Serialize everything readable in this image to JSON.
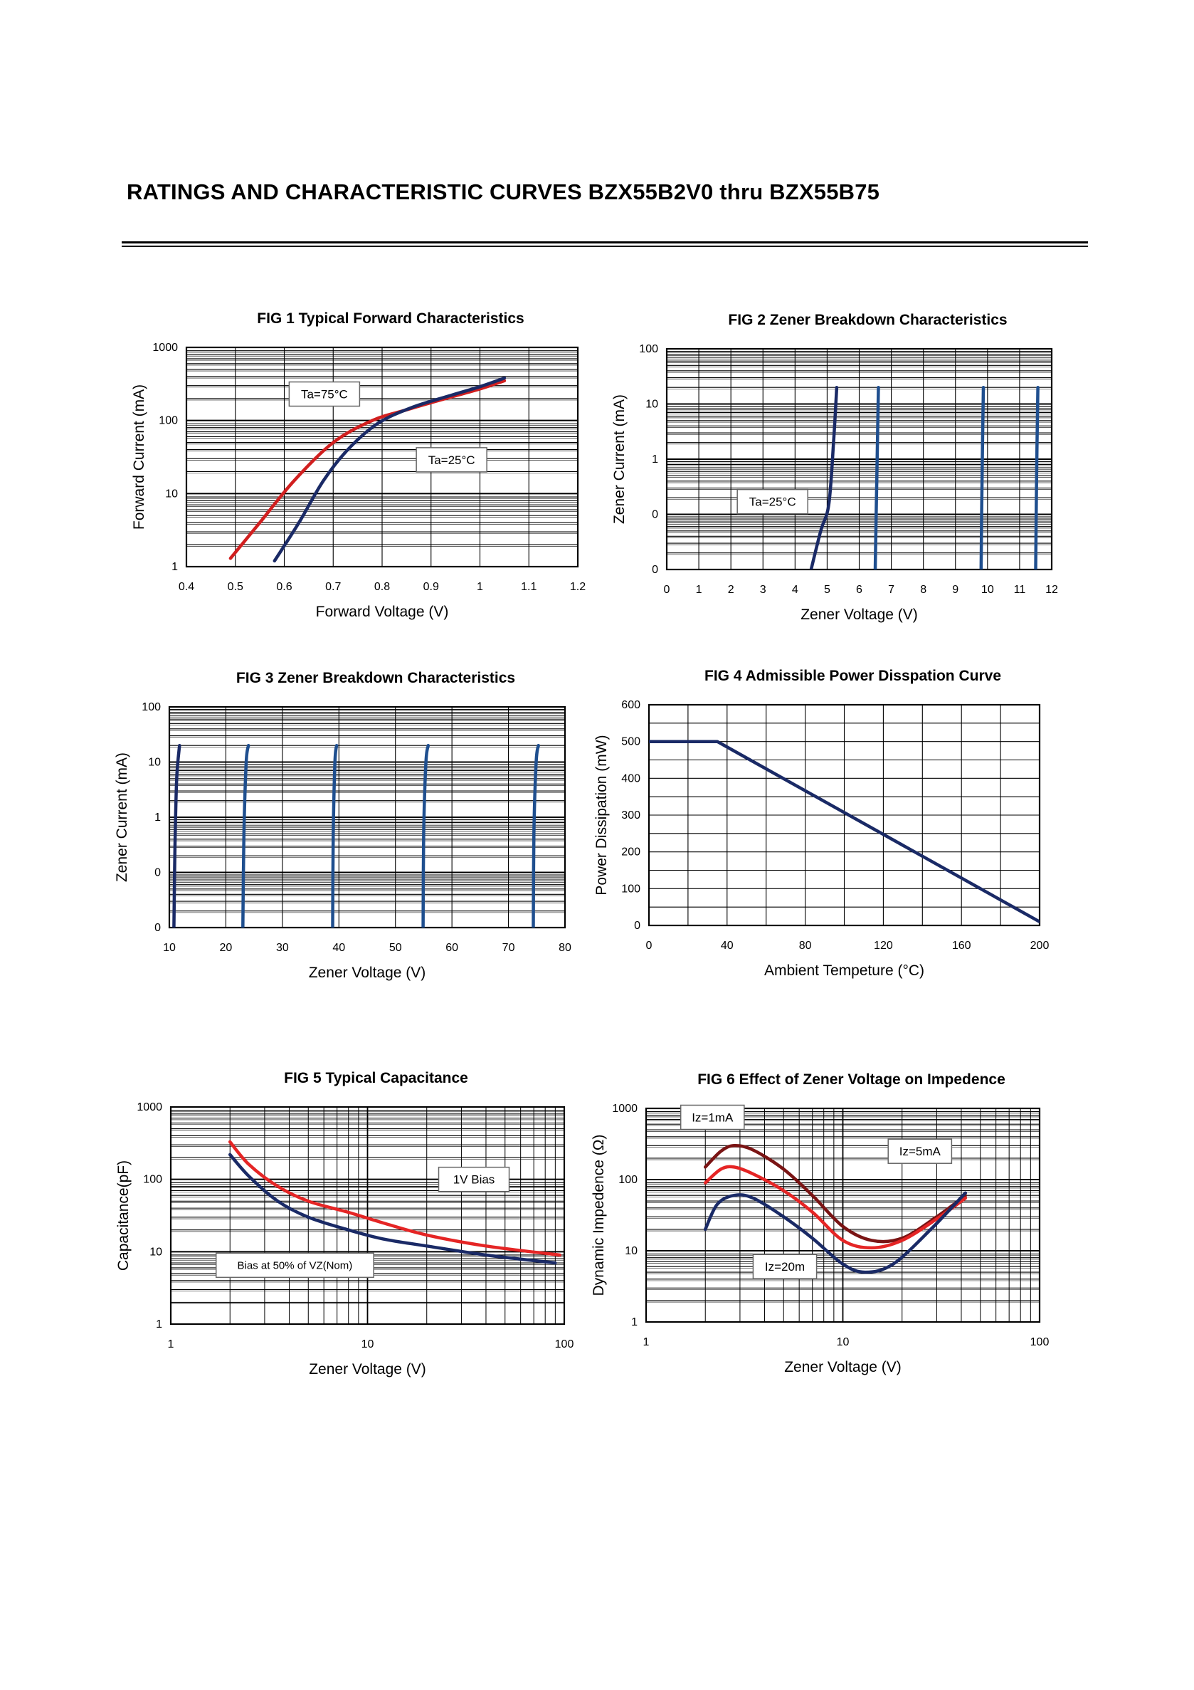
{
  "page": {
    "title": "RATINGS AND CHARACTERISTIC CURVES  BZX55B2V0 thru BZX55B75"
  },
  "colors": {
    "red": "#d11f1f",
    "navy": "#1a2a66",
    "blue": "#1f4f8f",
    "darkred": "#7a1414"
  },
  "chart_data": [
    {
      "id": "fig1",
      "type": "line",
      "title": "FIG 1 Typical Forward Characteristics",
      "xlabel": "Forward Voltage (V)",
      "ylabel": "Forward Current (mA)",
      "xlim": [
        0.4,
        1.2
      ],
      "ylim": [
        1,
        1000
      ],
      "yscale": "log",
      "grid": true,
      "xticks": [
        0.4,
        0.5,
        0.6,
        0.7,
        0.8,
        0.9,
        1,
        1.1,
        1.2
      ],
      "xtick_labels": [
        "0.4",
        "0.5",
        "0.6",
        "0.7",
        "0.8",
        "0.9",
        "1",
        "1.1",
        "1.2"
      ],
      "yticks": [
        1,
        10,
        100,
        1000
      ],
      "ytick_labels": [
        "1",
        "10",
        "100",
        "1000"
      ],
      "series": [
        {
          "name": "Ta=75°C",
          "color": "#d11f1f",
          "points": [
            [
              0.49,
              1.3
            ],
            [
              0.55,
              4
            ],
            [
              0.62,
              15
            ],
            [
              0.7,
              50
            ],
            [
              0.78,
              100
            ],
            [
              0.85,
              140
            ],
            [
              0.93,
              200
            ],
            [
              1.0,
              270
            ],
            [
              1.05,
              350
            ]
          ]
        },
        {
          "name": "Ta=25°C",
          "color": "#1a2a66",
          "points": [
            [
              0.58,
              1.2
            ],
            [
              0.63,
              4
            ],
            [
              0.68,
              15
            ],
            [
              0.73,
              40
            ],
            [
              0.79,
              90
            ],
            [
              0.86,
              150
            ],
            [
              0.94,
              220
            ],
            [
              1.0,
              290
            ],
            [
              1.05,
              380
            ]
          ]
        }
      ],
      "annotations": [
        {
          "text": "Ta=75°C",
          "x": 0.61,
          "y": 230
        },
        {
          "text": "Ta=25°C",
          "x": 0.87,
          "y": 29
        }
      ]
    },
    {
      "id": "fig2",
      "type": "line",
      "title": "FIG 2 Zener Breakdown Characteristics",
      "xlabel": "Zener Voltage (V)",
      "ylabel": "Zener Current (mA)",
      "xlim": [
        0,
        12
      ],
      "ylim": [
        0.01,
        100
      ],
      "yscale": "log",
      "grid": true,
      "xticks": [
        0,
        1,
        2,
        3,
        4,
        5,
        6,
        7,
        8,
        9,
        10,
        11,
        12
      ],
      "xtick_labels": [
        "0",
        "1",
        "2",
        "3",
        "4",
        "5",
        "6",
        "7",
        "8",
        "9",
        "10",
        "11",
        "12"
      ],
      "yticks": [
        0.01,
        0.1,
        1,
        10,
        100
      ],
      "ytick_labels": [
        "0",
        "0",
        "1",
        "10",
        "100"
      ],
      "series": [
        {
          "color": "#1a2a66",
          "points": [
            [
              4.5,
              0.01
            ],
            [
              4.8,
              0.05
            ],
            [
              5.05,
              0.15
            ],
            [
              5.2,
              2
            ],
            [
              5.3,
              20
            ]
          ]
        },
        {
          "color": "#1f4f8f",
          "points": [
            [
              6.5,
              0.01
            ],
            [
              6.55,
              0.5
            ],
            [
              6.6,
              20
            ]
          ]
        },
        {
          "color": "#1f4f8f",
          "points": [
            [
              9.8,
              0.01
            ],
            [
              9.83,
              0.5
            ],
            [
              9.87,
              20
            ]
          ]
        },
        {
          "color": "#1f4f8f",
          "points": [
            [
              11.5,
              0.01
            ],
            [
              11.53,
              0.5
            ],
            [
              11.57,
              20
            ]
          ]
        }
      ],
      "annotations": [
        {
          "text": "Ta=25°C",
          "x": 2.2,
          "y": 0.17
        }
      ]
    },
    {
      "id": "fig3",
      "type": "line",
      "title": "FIG 3 Zener Breakdown Characteristics",
      "xlabel": "Zener Voltage (V)",
      "ylabel": "Zener Current (mA)",
      "xlim": [
        10,
        80
      ],
      "ylim": [
        0.01,
        100
      ],
      "yscale": "log",
      "grid": true,
      "xticks": [
        10,
        20,
        30,
        40,
        50,
        60,
        70,
        80
      ],
      "xtick_labels": [
        "10",
        "20",
        "30",
        "40",
        "50",
        "60",
        "70",
        "80"
      ],
      "yticks": [
        0.01,
        0.1,
        1,
        10,
        100
      ],
      "ytick_labels": [
        "0",
        "0",
        "1",
        "10",
        "100"
      ],
      "series": [
        {
          "color": "#1a2a66",
          "points": [
            [
              10.8,
              0.01
            ],
            [
              11.0,
              0.3
            ],
            [
              11.3,
              5
            ],
            [
              11.8,
              20
            ]
          ]
        },
        {
          "color": "#1f4f8f",
          "points": [
            [
              23.0,
              0.01
            ],
            [
              23.2,
              0.5
            ],
            [
              23.6,
              10
            ],
            [
              24.0,
              20
            ]
          ]
        },
        {
          "color": "#1f4f8f",
          "points": [
            [
              38.9,
              0.01
            ],
            [
              39.0,
              0.5
            ],
            [
              39.3,
              10
            ],
            [
              39.6,
              20
            ]
          ]
        },
        {
          "color": "#1f4f8f",
          "points": [
            [
              54.9,
              0.01
            ],
            [
              55.0,
              0.5
            ],
            [
              55.4,
              10
            ],
            [
              55.8,
              20
            ]
          ]
        },
        {
          "color": "#1f4f8f",
          "points": [
            [
              74.4,
              0.01
            ],
            [
              74.5,
              0.5
            ],
            [
              74.9,
              10
            ],
            [
              75.3,
              20
            ]
          ]
        }
      ]
    },
    {
      "id": "fig4",
      "type": "line",
      "title": "FIG 4 Admissible Power Disspation Curve",
      "xlabel": "Ambient Tempeture (°C)",
      "ylabel": "Power Dissipation (mW)",
      "xlim": [
        0,
        200
      ],
      "ylim": [
        0,
        600
      ],
      "grid": true,
      "xticks": [
        0,
        40,
        80,
        120,
        160,
        200
      ],
      "xtick_labels": [
        "0",
        "40",
        "80",
        "120",
        "160",
        "200"
      ],
      "yticks": [
        0,
        100,
        200,
        300,
        400,
        500,
        600
      ],
      "ytick_labels": [
        "0",
        "100",
        "200",
        "300",
        "400",
        "500",
        "600"
      ],
      "series": [
        {
          "color": "#1a2a66",
          "points": [
            [
              0,
              500
            ],
            [
              35,
              500
            ],
            [
              200,
              10
            ]
          ]
        }
      ]
    },
    {
      "id": "fig5",
      "type": "line",
      "title": "FIG 5 Typical Capacitance",
      "xlabel": "Zener Voltage (V)",
      "ylabel": "Capacitance(pF)",
      "xlim": [
        1,
        100
      ],
      "ylim": [
        1,
        1000
      ],
      "xscale": "log",
      "yscale": "log",
      "grid": true,
      "xticks": [
        1,
        10,
        100
      ],
      "xtick_labels": [
        "1",
        "10",
        "100"
      ],
      "yticks": [
        1,
        10,
        100,
        1000
      ],
      "ytick_labels": [
        "1",
        "10",
        "100",
        "1000"
      ],
      "series": [
        {
          "name": "1V Bias",
          "color": "#e52525",
          "points": [
            [
              2,
              330
            ],
            [
              2.5,
              160
            ],
            [
              3.5,
              80
            ],
            [
              5,
              50
            ],
            [
              8,
              35
            ],
            [
              12,
              25
            ],
            [
              20,
              17
            ],
            [
              40,
              12
            ],
            [
              95,
              9
            ]
          ]
        },
        {
          "name": "Bias at 50% of VZ(Nom)",
          "color": "#1a2a66",
          "points": [
            [
              2,
              220
            ],
            [
              2.5,
              110
            ],
            [
              3.5,
              50
            ],
            [
              5,
              30
            ],
            [
              8,
              20
            ],
            [
              12,
              15
            ],
            [
              20,
              12
            ],
            [
              40,
              9
            ],
            [
              90,
              7
            ]
          ]
        }
      ],
      "annotations": [
        {
          "text": "1V Bias",
          "x": 23,
          "y": 100
        },
        {
          "text": "Bias at 50% of VZ(Nom)",
          "x": 1.7,
          "y": 6.5
        }
      ]
    },
    {
      "id": "fig6",
      "type": "line",
      "title": "FIG 6 Effect of Zener Voltage on Impedence",
      "xlabel": "Zener Voltage (V)",
      "ylabel": "Dynamic Impedence (Ω)",
      "xlim": [
        1,
        100
      ],
      "ylim": [
        1,
        1000
      ],
      "xscale": "log",
      "yscale": "log",
      "grid": true,
      "xticks": [
        1,
        10,
        100
      ],
      "xtick_labels": [
        "1",
        "10",
        "100"
      ],
      "yticks": [
        1,
        10,
        100,
        1000
      ],
      "ytick_labels": [
        "1",
        "10",
        "100",
        "1000"
      ],
      "series": [
        {
          "name": "Iz=1mA",
          "color": "#7a1414",
          "points": [
            [
              2,
              150
            ],
            [
              2.4,
              250
            ],
            [
              2.8,
              300
            ],
            [
              3.5,
              260
            ],
            [
              5,
              140
            ],
            [
              7,
              60
            ],
            [
              10,
              22
            ],
            [
              14,
              14
            ],
            [
              20,
              15
            ],
            [
              30,
              30
            ],
            [
              42,
              60
            ]
          ]
        },
        {
          "name": "Iz=5mA",
          "color": "#e52525",
          "points": [
            [
              2,
              90
            ],
            [
              2.4,
              140
            ],
            [
              2.8,
              150
            ],
            [
              3.5,
              120
            ],
            [
              5,
              70
            ],
            [
              7,
              35
            ],
            [
              10,
              14
            ],
            [
              14,
              11
            ],
            [
              20,
              14
            ],
            [
              30,
              28
            ],
            [
              42,
              55
            ]
          ]
        },
        {
          "name": "Iz=20m",
          "color": "#1a2a66",
          "points": [
            [
              2,
              20
            ],
            [
              2.3,
              45
            ],
            [
              2.8,
              60
            ],
            [
              3.5,
              55
            ],
            [
              5,
              30
            ],
            [
              7,
              15
            ],
            [
              10,
              6.5
            ],
            [
              13,
              5
            ],
            [
              18,
              6.5
            ],
            [
              28,
              20
            ],
            [
              42,
              65
            ]
          ]
        }
      ],
      "annotations": [
        {
          "text": "Iz=1mA",
          "x": 1.5,
          "y": 750
        },
        {
          "text": "Iz=5mA",
          "x": 17,
          "y": 250
        },
        {
          "text": "Iz=20m",
          "x": 3.5,
          "y": 6
        }
      ]
    }
  ]
}
